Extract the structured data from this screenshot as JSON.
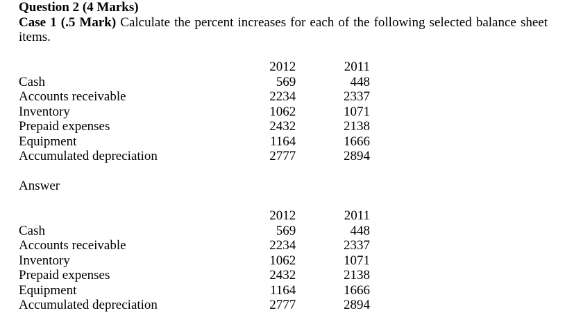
{
  "document": {
    "heading": "Question 2 (4 Marks)",
    "case_bold": "Case 1 (.5 Mark)",
    "case_rest": "Calculate the percent increases for each of the following selected balance sheet",
    "case_continuation": "items.",
    "answer_label": "Answer"
  },
  "balance_table": {
    "col_year_1": "2012",
    "col_year_2": "2011",
    "rows": [
      {
        "item": "Cash",
        "v2012": "569",
        "v2011": "448"
      },
      {
        "item": "Accounts receivable",
        "v2012": "2234",
        "v2011": "2337"
      },
      {
        "item": "Inventory",
        "v2012": "1062",
        "v2011": "1071"
      },
      {
        "item": "Prepaid expenses",
        "v2012": "2432",
        "v2011": "2138"
      },
      {
        "item": "Equipment",
        "v2012": "1164",
        "v2011": "1666"
      },
      {
        "item": "Accumulated depreciation",
        "v2012": "2777",
        "v2011": "2894"
      }
    ]
  }
}
